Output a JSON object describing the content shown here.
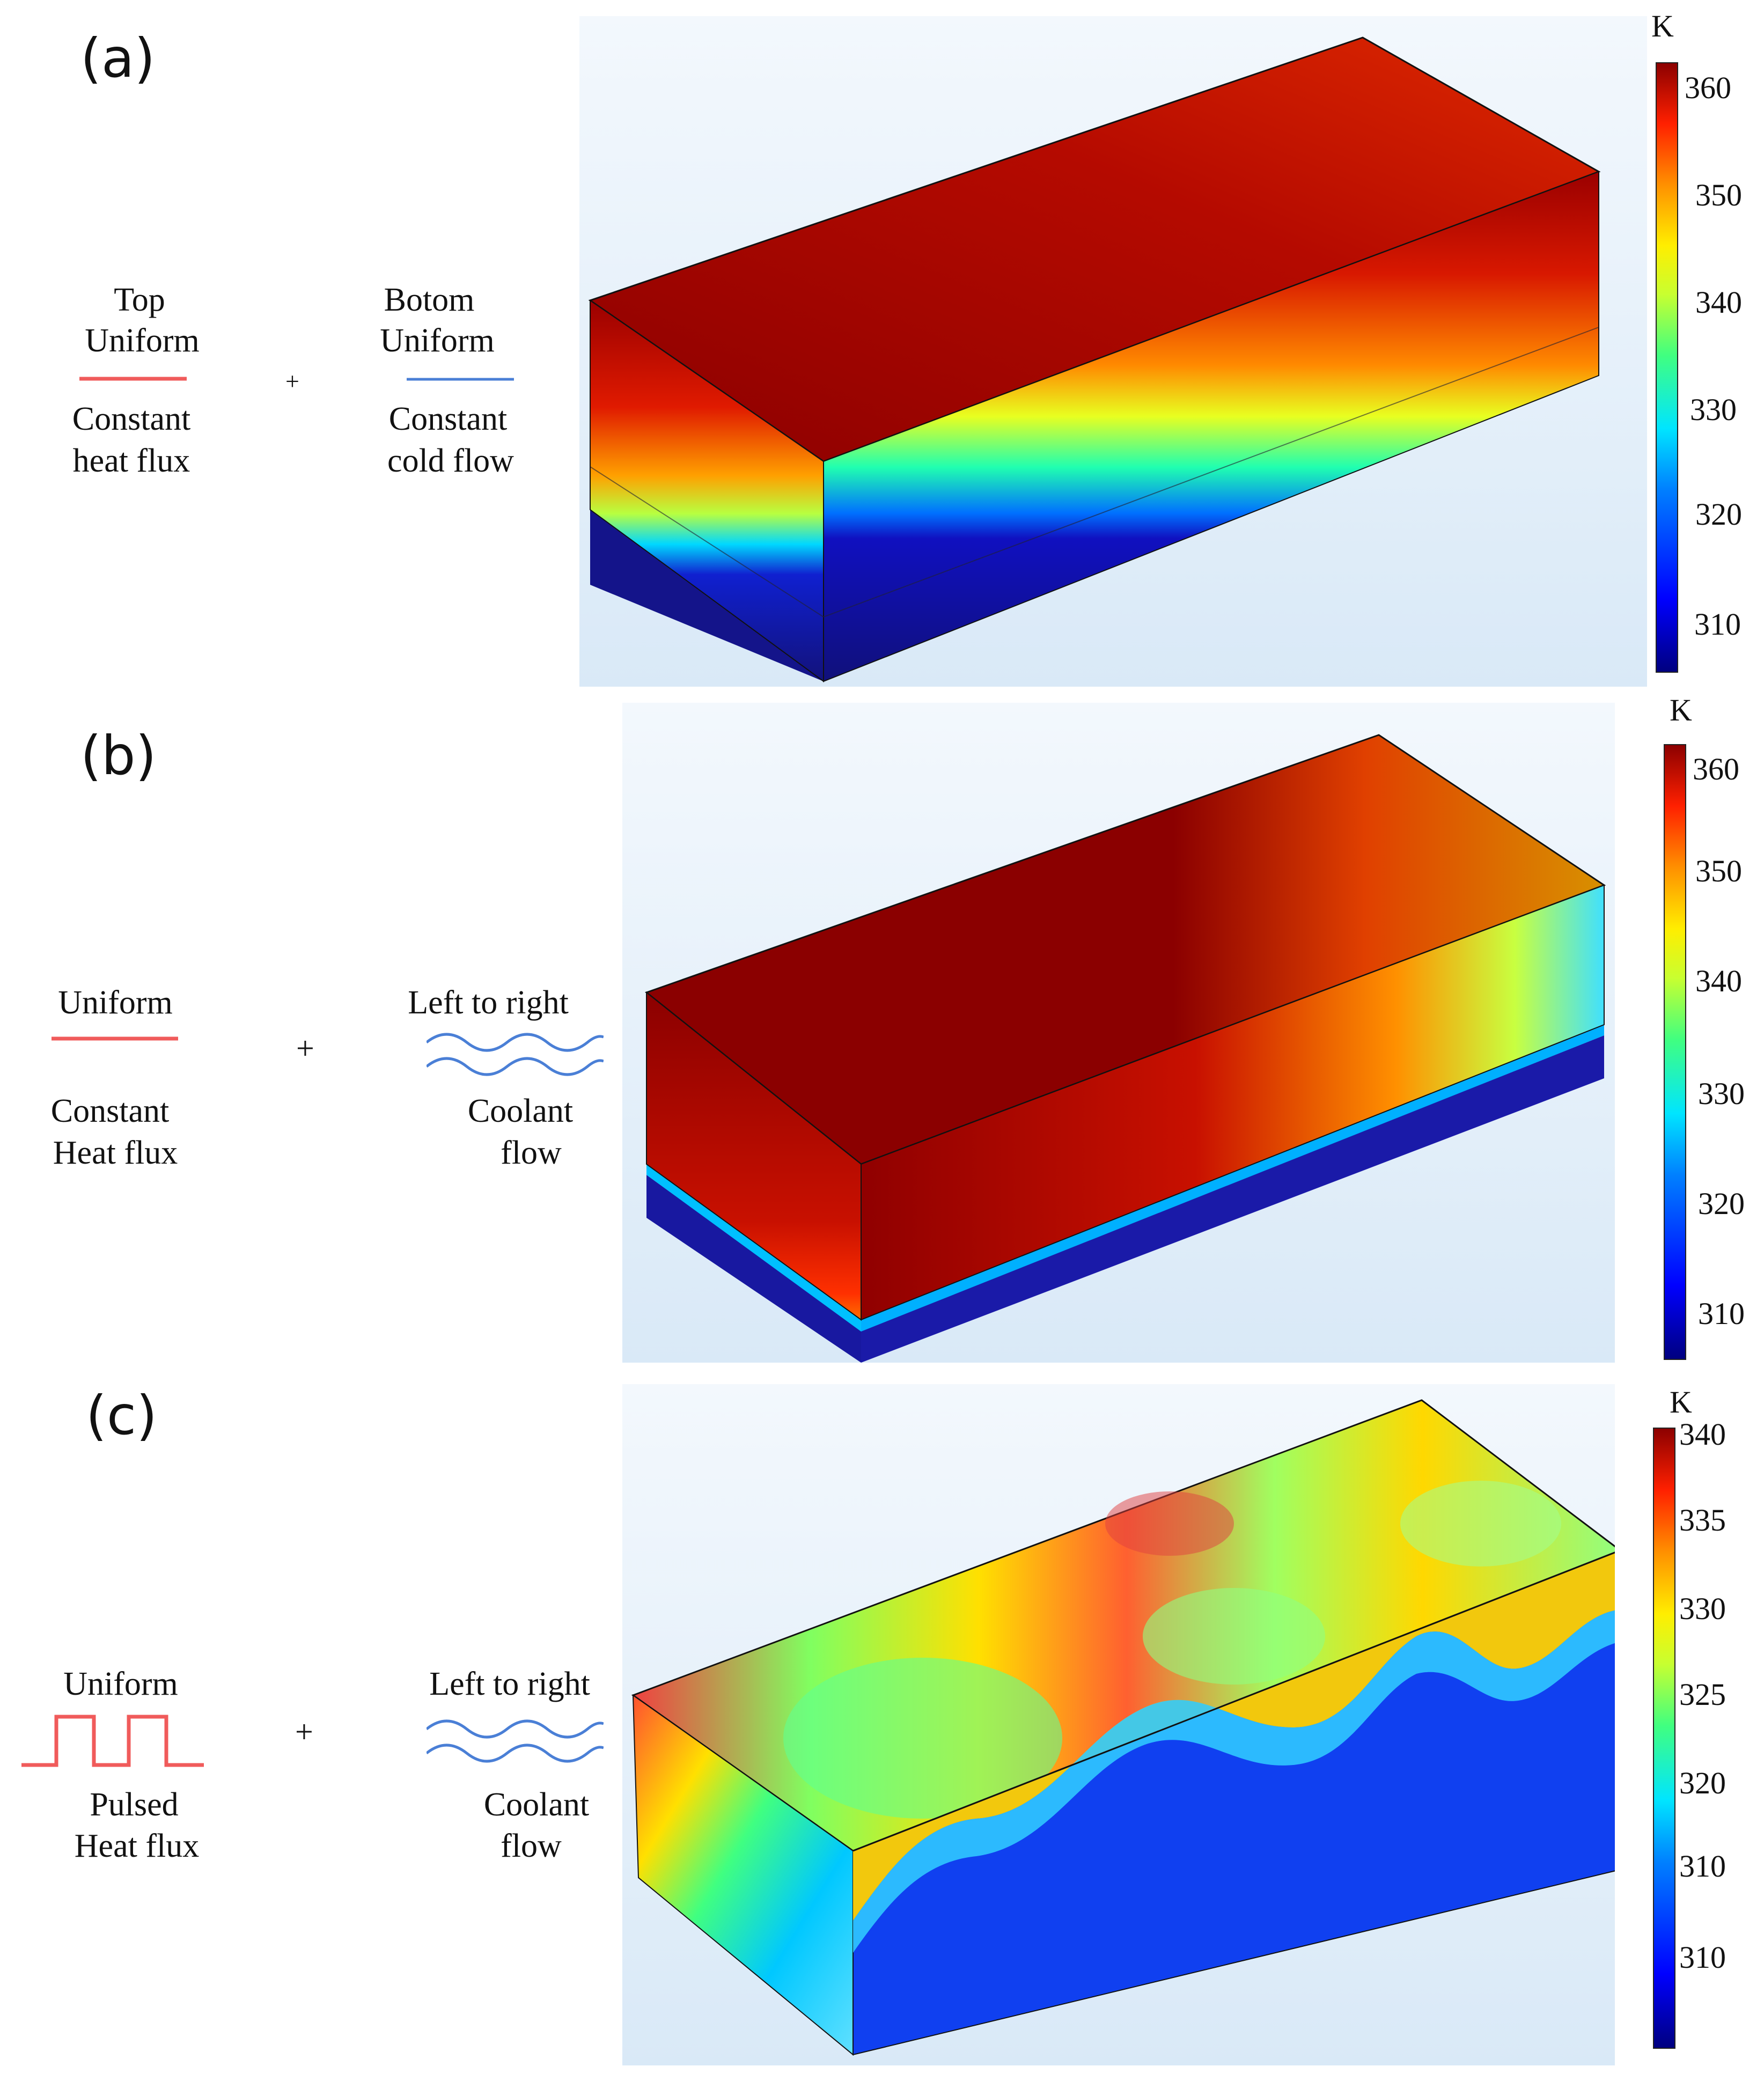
{
  "colors": {
    "heat": "#f05b5b",
    "cold": "#4a7fd6",
    "background_tint": "#dcebf8",
    "cmap": [
      "#00007f",
      "#0000ff",
      "#0080ff",
      "#00e5ff",
      "#40ff80",
      "#c8ff30",
      "#ffee00",
      "#ff9000",
      "#ff2000",
      "#8b0000"
    ]
  },
  "panels": [
    {
      "label": "(a)",
      "left_caption": {
        "above": [
          "Top",
          "Uniform"
        ],
        "below": [
          "Constant",
          "heat flux"
        ]
      },
      "left_icon": "line-icon",
      "plus": "+",
      "right_caption": {
        "above": [
          "Botom",
          "Uniform"
        ],
        "below": [
          "Constant",
          "cold flow"
        ]
      },
      "right_icon": "line-icon",
      "colorbar": {
        "unit": "K",
        "ticks": [
          "360",
          "350",
          "340",
          "330",
          "320",
          "310"
        ]
      }
    },
    {
      "label": "(b)",
      "left_caption": {
        "above": [
          "Uniform"
        ],
        "below": [
          "Constant",
          "Heat flux"
        ]
      },
      "left_icon": "line-icon",
      "plus": "+",
      "right_caption": {
        "above": [
          "Left to right"
        ],
        "below": [
          "Coolant",
          "flow"
        ]
      },
      "right_icon": "wave-icon",
      "colorbar": {
        "unit": "K",
        "ticks": [
          "360",
          "350",
          "340",
          "330",
          "320",
          "310"
        ]
      }
    },
    {
      "label": "(c)",
      "left_caption": {
        "above": [
          "Uniform"
        ],
        "below": [
          "Pulsed",
          "Heat flux"
        ]
      },
      "left_icon": "pulse-icon",
      "plus": "+",
      "right_caption": {
        "above": [
          "Left to right"
        ],
        "below": [
          "Coolant",
          "flow"
        ]
      },
      "right_icon": "wave-icon",
      "colorbar": {
        "unit": "K",
        "ticks": [
          "340",
          "335",
          "330",
          "325",
          "320",
          "310",
          "310"
        ]
      }
    }
  ]
}
